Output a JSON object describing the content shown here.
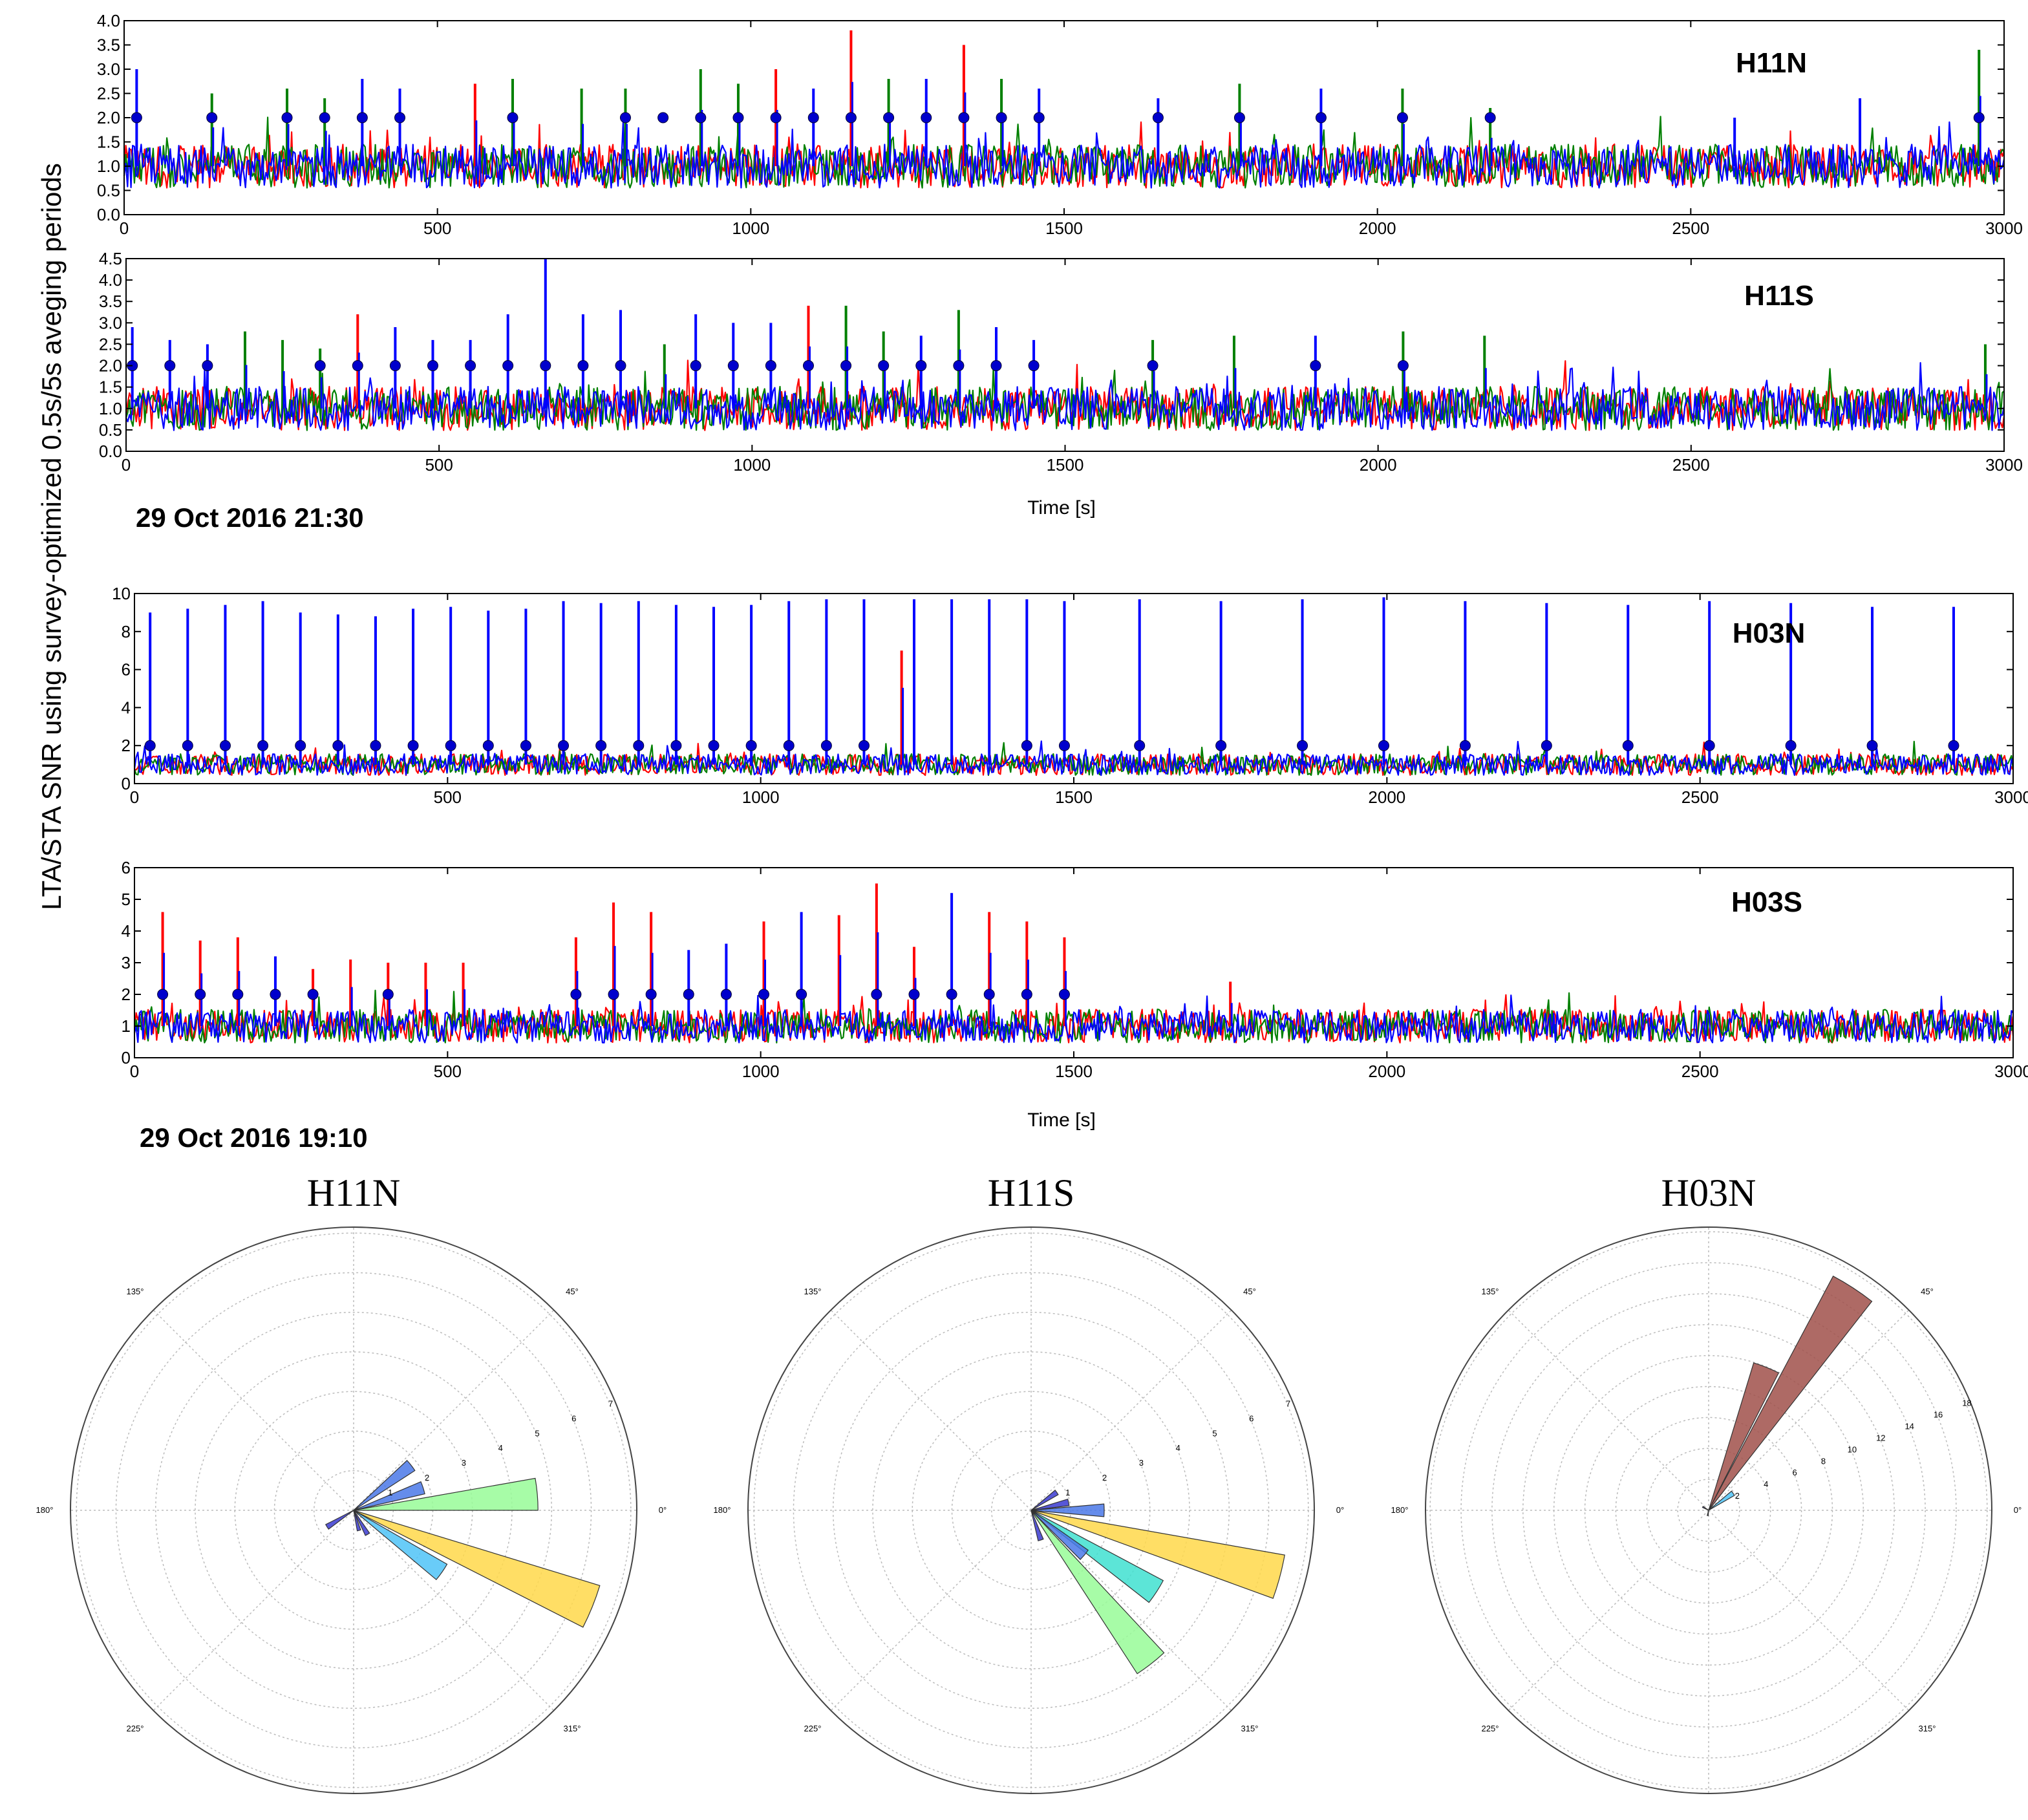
{
  "figure": {
    "ylabel": "LTA/STA SNR using survey-optimized 0.5s/5s aveging periods",
    "date_top": "29 Oct 2016 21:30",
    "date_bottom": "29 Oct 2016 19:10",
    "xlabel_top": "Time [s]",
    "xlabel_bottom": "Time [s]",
    "colors": {
      "series_a": "#ff0000",
      "series_b": "#008000",
      "series_c": "#0000ff",
      "marker": "#0000cc"
    }
  },
  "chart_data": [
    {
      "type": "line",
      "title": "H11N",
      "xlim": [
        0,
        3000
      ],
      "ylim": [
        0,
        4.0
      ],
      "xticks": [
        "0",
        "500",
        "1000",
        "1500",
        "2000",
        "2500",
        "3000"
      ],
      "yticks": [
        "0.0",
        "0.5",
        "1.0",
        "1.5",
        "2.0",
        "2.5",
        "3.0",
        "3.5",
        "4.0"
      ],
      "series_names": [
        "red",
        "green",
        "blue"
      ],
      "baseline": 1.0,
      "noise": 0.28,
      "peaks": [
        [
          20,
          3.0,
          "c"
        ],
        [
          140,
          2.5,
          "b"
        ],
        [
          260,
          2.6,
          "b"
        ],
        [
          320,
          2.4,
          "b"
        ],
        [
          380,
          2.8,
          "c"
        ],
        [
          440,
          2.6,
          "c"
        ],
        [
          560,
          2.7,
          "a"
        ],
        [
          620,
          2.8,
          "b"
        ],
        [
          730,
          2.6,
          "b"
        ],
        [
          800,
          2.6,
          "b"
        ],
        [
          920,
          3.0,
          "b"
        ],
        [
          980,
          2.7,
          "b"
        ],
        [
          1040,
          3.0,
          "a"
        ],
        [
          1100,
          2.6,
          "c"
        ],
        [
          1160,
          3.8,
          "a"
        ],
        [
          1220,
          2.8,
          "b"
        ],
        [
          1280,
          2.8,
          "c"
        ],
        [
          1340,
          3.5,
          "a"
        ],
        [
          1400,
          2.8,
          "b"
        ],
        [
          1460,
          2.6,
          "c"
        ],
        [
          1650,
          2.4,
          "c"
        ],
        [
          1780,
          2.7,
          "b"
        ],
        [
          1910,
          2.6,
          "c"
        ],
        [
          2040,
          2.6,
          "b"
        ],
        [
          2180,
          2.2,
          "b"
        ],
        [
          2570,
          2.0,
          "c"
        ],
        [
          2770,
          2.4,
          "c"
        ],
        [
          2960,
          3.4,
          "b"
        ]
      ],
      "markers_x": [
        20,
        140,
        260,
        320,
        380,
        440,
        620,
        800,
        860,
        920,
        980,
        1040,
        1100,
        1160,
        1220,
        1280,
        1340,
        1400,
        1460,
        1650,
        1780,
        1910,
        2040,
        2180,
        2960
      ],
      "marker_y": 2.0
    },
    {
      "type": "line",
      "title": "H11S",
      "xlim": [
        0,
        3000
      ],
      "ylim": [
        0,
        4.5
      ],
      "xticks": [
        "0",
        "500",
        "1000",
        "1500",
        "2000",
        "2500",
        "3000"
      ],
      "yticks": [
        "0.0",
        "0.5",
        "1.0",
        "1.5",
        "2.0",
        "2.5",
        "3.0",
        "3.5",
        "4.0",
        "4.5"
      ],
      "series_names": [
        "red",
        "green",
        "blue"
      ],
      "baseline": 1.0,
      "noise": 0.32,
      "peaks": [
        [
          10,
          2.9,
          "c"
        ],
        [
          70,
          2.6,
          "c"
        ],
        [
          130,
          2.5,
          "c"
        ],
        [
          190,
          2.8,
          "b"
        ],
        [
          250,
          2.6,
          "b"
        ],
        [
          310,
          2.4,
          "b"
        ],
        [
          370,
          3.2,
          "a"
        ],
        [
          430,
          2.9,
          "c"
        ],
        [
          490,
          2.6,
          "c"
        ],
        [
          550,
          2.6,
          "c"
        ],
        [
          610,
          3.2,
          "c"
        ],
        [
          670,
          4.5,
          "c"
        ],
        [
          730,
          3.2,
          "c"
        ],
        [
          790,
          3.3,
          "c"
        ],
        [
          860,
          2.5,
          "b"
        ],
        [
          910,
          3.2,
          "c"
        ],
        [
          970,
          3.0,
          "c"
        ],
        [
          1030,
          3.0,
          "c"
        ],
        [
          1090,
          3.4,
          "a"
        ],
        [
          1150,
          3.4,
          "b"
        ],
        [
          1210,
          2.8,
          "b"
        ],
        [
          1270,
          2.7,
          "c"
        ],
        [
          1330,
          3.3,
          "b"
        ],
        [
          1390,
          2.9,
          "c"
        ],
        [
          1450,
          2.6,
          "c"
        ],
        [
          1640,
          2.6,
          "b"
        ],
        [
          1770,
          2.7,
          "b"
        ],
        [
          1900,
          2.7,
          "c"
        ],
        [
          2040,
          2.8,
          "b"
        ],
        [
          2170,
          2.7,
          "b"
        ],
        [
          2970,
          2.5,
          "b"
        ]
      ],
      "markers_x": [
        10,
        70,
        130,
        310,
        370,
        430,
        490,
        550,
        610,
        670,
        730,
        790,
        910,
        970,
        1030,
        1090,
        1150,
        1210,
        1270,
        1330,
        1390,
        1450,
        1640,
        1900,
        2040
      ],
      "marker_y": 2.0
    },
    {
      "type": "line",
      "title": "H03N",
      "xlim": [
        0,
        3000
      ],
      "ylim": [
        0,
        10
      ],
      "xticks": [
        "0",
        "500",
        "1000",
        "1500",
        "2000",
        "2500",
        "3000"
      ],
      "yticks": [
        "0",
        "2",
        "4",
        "6",
        "8",
        "10"
      ],
      "series_names": [
        "red",
        "green",
        "blue"
      ],
      "baseline": 1.0,
      "noise": 0.35,
      "peaks": [
        [
          25,
          9.0,
          "c"
        ],
        [
          85,
          9.2,
          "c"
        ],
        [
          145,
          9.4,
          "c"
        ],
        [
          205,
          9.6,
          "c"
        ],
        [
          265,
          9.0,
          "c"
        ],
        [
          325,
          8.9,
          "c"
        ],
        [
          385,
          8.8,
          "c"
        ],
        [
          445,
          9.2,
          "c"
        ],
        [
          505,
          9.3,
          "c"
        ],
        [
          565,
          9.1,
          "c"
        ],
        [
          625,
          9.2,
          "c"
        ],
        [
          685,
          9.6,
          "c"
        ],
        [
          745,
          9.5,
          "c"
        ],
        [
          805,
          9.6,
          "c"
        ],
        [
          865,
          9.4,
          "c"
        ],
        [
          925,
          9.3,
          "c"
        ],
        [
          985,
          9.4,
          "c"
        ],
        [
          1045,
          9.6,
          "c"
        ],
        [
          1105,
          9.7,
          "c"
        ],
        [
          1165,
          9.7,
          "c"
        ],
        [
          1225,
          7.0,
          "a"
        ],
        [
          1245,
          9.7,
          "c"
        ],
        [
          1305,
          9.7,
          "c"
        ],
        [
          1365,
          9.7,
          "c"
        ],
        [
          1425,
          9.7,
          "c"
        ],
        [
          1485,
          9.6,
          "c"
        ],
        [
          1605,
          9.7,
          "c"
        ],
        [
          1735,
          9.6,
          "c"
        ],
        [
          1865,
          9.7,
          "c"
        ],
        [
          1995,
          9.8,
          "c"
        ],
        [
          2125,
          9.6,
          "c"
        ],
        [
          2255,
          9.5,
          "c"
        ],
        [
          2385,
          9.4,
          "c"
        ],
        [
          2515,
          9.6,
          "c"
        ],
        [
          2645,
          9.5,
          "c"
        ],
        [
          2775,
          9.3,
          "c"
        ],
        [
          2905,
          9.3,
          "c"
        ]
      ],
      "markers_x": [
        25,
        85,
        145,
        205,
        265,
        325,
        385,
        445,
        505,
        565,
        625,
        685,
        745,
        805,
        865,
        925,
        985,
        1045,
        1105,
        1165,
        1425,
        1485,
        1605,
        1735,
        1865,
        1995,
        2125,
        2255,
        2385,
        2515,
        2645,
        2775,
        2905
      ],
      "marker_y": 2.0
    },
    {
      "type": "line",
      "title": "H03S",
      "xlim": [
        0,
        3000
      ],
      "ylim": [
        0,
        6
      ],
      "xticks": [
        "0",
        "500",
        "1000",
        "1500",
        "2000",
        "2500",
        "3000"
      ],
      "yticks": [
        "0",
        "1",
        "2",
        "3",
        "4",
        "5",
        "6"
      ],
      "series_names": [
        "red",
        "green",
        "blue"
      ],
      "baseline": 1.0,
      "noise": 0.33,
      "peaks": [
        [
          45,
          4.6,
          "a"
        ],
        [
          105,
          3.7,
          "a"
        ],
        [
          165,
          3.8,
          "a"
        ],
        [
          225,
          3.2,
          "c"
        ],
        [
          285,
          2.8,
          "a"
        ],
        [
          345,
          3.1,
          "a"
        ],
        [
          405,
          3.0,
          "a"
        ],
        [
          465,
          3.0,
          "a"
        ],
        [
          525,
          3.0,
          "a"
        ],
        [
          705,
          3.8,
          "a"
        ],
        [
          765,
          4.9,
          "a"
        ],
        [
          825,
          4.6,
          "a"
        ],
        [
          885,
          3.4,
          "c"
        ],
        [
          945,
          3.6,
          "c"
        ],
        [
          1005,
          4.3,
          "a"
        ],
        [
          1065,
          4.6,
          "c"
        ],
        [
          1125,
          4.5,
          "a"
        ],
        [
          1185,
          5.5,
          "a"
        ],
        [
          1245,
          3.5,
          "a"
        ],
        [
          1305,
          5.2,
          "c"
        ],
        [
          1365,
          4.6,
          "a"
        ],
        [
          1425,
          4.3,
          "a"
        ],
        [
          1485,
          3.8,
          "a"
        ],
        [
          1750,
          2.4,
          "a"
        ]
      ],
      "markers_x": [
        45,
        105,
        165,
        225,
        285,
        405,
        705,
        765,
        825,
        885,
        945,
        1005,
        1065,
        1185,
        1245,
        1305,
        1365,
        1425,
        1485
      ],
      "marker_y": 2.0
    },
    {
      "type": "polar-bar",
      "title": "H11N",
      "angle_labels": [
        "0°",
        "45°",
        "135°",
        "180°",
        "225°",
        "315°"
      ],
      "rmax": 7,
      "radial_ticks": [
        "1",
        "2",
        "3",
        "4",
        "5",
        "6",
        "7"
      ],
      "bars": [
        {
          "theta": 5,
          "r": 5.3,
          "width": 10,
          "color": "#98fb98"
        },
        {
          "theta": 338,
          "r": 7.4,
          "width": 10,
          "color": "#ffd84a"
        },
        {
          "theta": 325,
          "r": 3.1,
          "width": 10,
          "color": "#4fc3f7"
        },
        {
          "theta": 18,
          "r": 2.1,
          "width": 10,
          "color": "#4a78e8"
        },
        {
          "theta": 38,
          "r": 2.1,
          "width": 10,
          "color": "#4a78e8"
        },
        {
          "theta": 300,
          "r": 0.8,
          "width": 10,
          "color": "#3a3ad0"
        },
        {
          "theta": 285,
          "r": 0.6,
          "width": 10,
          "color": "#3a3ad0"
        },
        {
          "theta": 212,
          "r": 0.9,
          "width": 10,
          "color": "#3a3ad0"
        }
      ]
    },
    {
      "type": "polar-bar",
      "title": "H11S",
      "angle_labels": [
        "0°",
        "45°",
        "135°",
        "180°",
        "225°",
        "315°"
      ],
      "rmax": 7,
      "radial_ticks": [
        "1",
        "2",
        "3",
        "4",
        "5",
        "6",
        "7"
      ],
      "bars": [
        {
          "theta": 345,
          "r": 7.4,
          "width": 10,
          "color": "#ffd84a"
        },
        {
          "theta": 327,
          "r": 4.3,
          "width": 10,
          "color": "#40e0d0"
        },
        {
          "theta": 308,
          "r": 5.6,
          "width": 10,
          "color": "#98fb98"
        },
        {
          "theta": 0,
          "r": 2.1,
          "width": 10,
          "color": "#4a78e8"
        },
        {
          "theta": 320,
          "r": 2.0,
          "width": 10,
          "color": "#4a78e8"
        },
        {
          "theta": 12,
          "r": 1.1,
          "width": 10,
          "color": "#3a3ad0"
        },
        {
          "theta": 35,
          "r": 0.9,
          "width": 10,
          "color": "#3a3ad0"
        },
        {
          "theta": 288,
          "r": 0.9,
          "width": 10,
          "color": "#3a3ad0"
        }
      ]
    },
    {
      "type": "polar-bar",
      "title": "H03N",
      "angle_labels": [
        "0°",
        "45°",
        "135°",
        "180°",
        "225°",
        "315°"
      ],
      "rmax": 18,
      "radial_ticks": [
        "2",
        "4",
        "6",
        "8",
        "10",
        "12",
        "14",
        "16",
        "18"
      ],
      "bars": [
        {
          "theta": 57,
          "r": 19.6,
          "width": 10,
          "color": "#a0504a"
        },
        {
          "theta": 68,
          "r": 11.4,
          "width": 10,
          "color": "#a0504a"
        },
        {
          "theta": 35,
          "r": 2.2,
          "width": 10,
          "color": "#4fc3f7"
        },
        {
          "theta": 150,
          "r": 0.5,
          "width": 10,
          "color": "#3a3ad0"
        },
        {
          "theta": 260,
          "r": 0.4,
          "width": 10,
          "color": "#3a3ad0"
        }
      ]
    }
  ]
}
